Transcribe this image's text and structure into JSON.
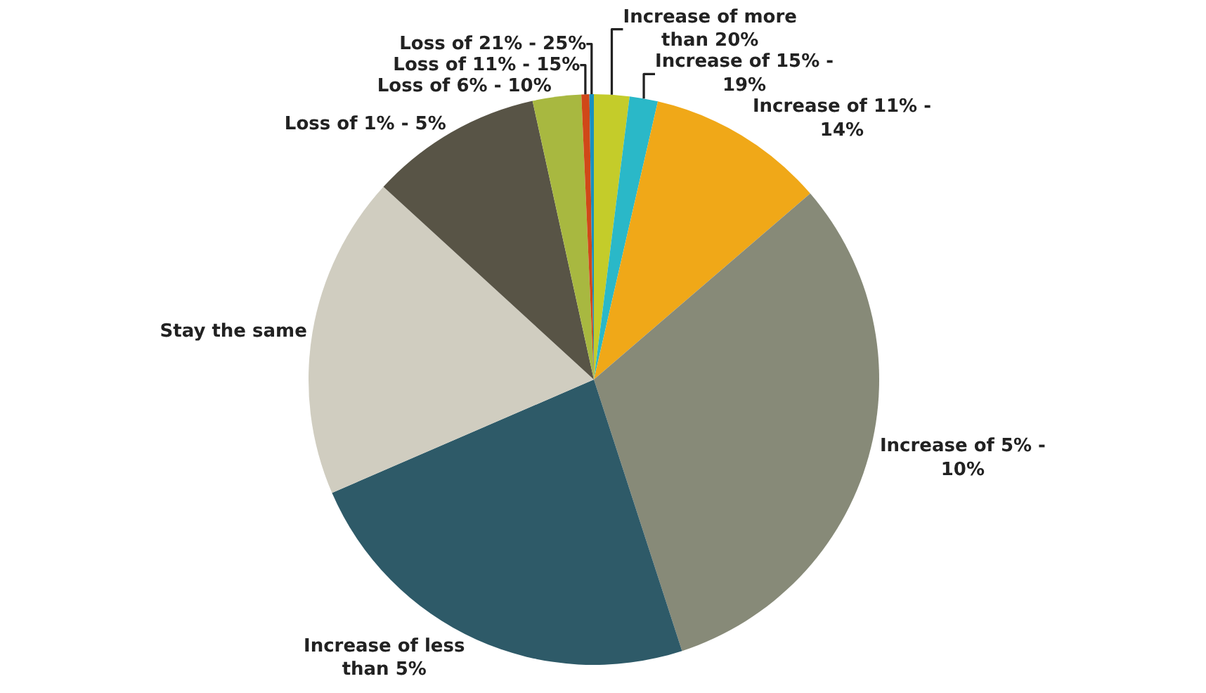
{
  "chart_data": {
    "type": "pie",
    "categories": [
      "Increase of more than 20%",
      "Increase of 15% - 19%",
      "Increase of 11% - 14%",
      "Increase of 5% - 10%",
      "Increase of less than 5%",
      "Stay the same",
      "Loss of 1% - 5%",
      "Loss of 6% - 10%",
      "Loss of 11% - 15%",
      "Loss of 21% - 25%"
    ],
    "values": [
      2,
      1.6,
      10.1,
      31.3,
      23.5,
      18.3,
      9.75,
      2.75,
      0.45,
      0.25
    ],
    "colors": [
      "#c4cc2a",
      "#2ab8c8",
      "#f0a818",
      "#878a78",
      "#2e5a68",
      "#d0cdc0",
      "#585446",
      "#a8b840",
      "#d04818",
      "#1890c0"
    ],
    "legend": false
  }
}
